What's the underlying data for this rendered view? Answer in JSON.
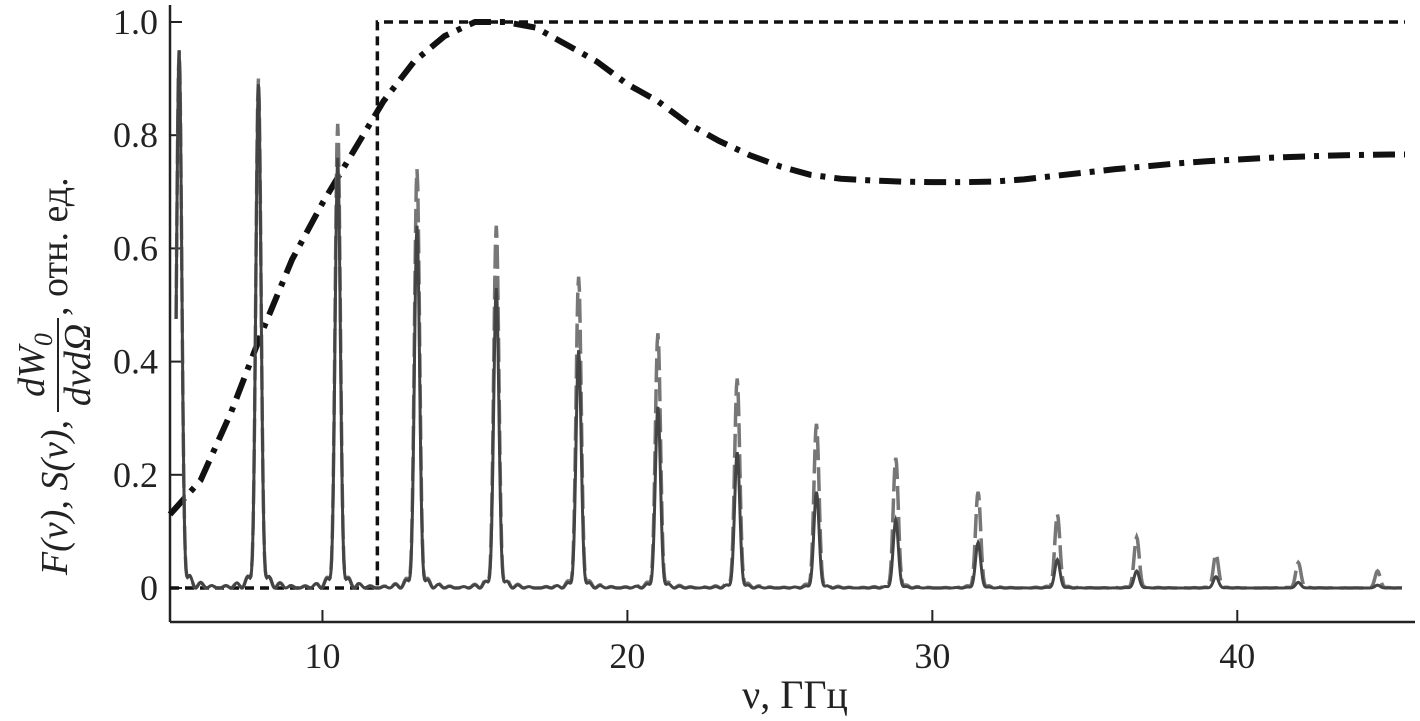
{
  "chart_data": {
    "type": "line",
    "xlabel": "ν, ГГц",
    "ylabel": {
      "prefix": "F(ν), S(ν),",
      "frac_num": "dW",
      "frac_num_sub": "0",
      "frac_den": "dνdΩ",
      "suffix": ", отн. ед."
    },
    "xlim": [
      5,
      45.5
    ],
    "ylim": [
      0,
      1.0
    ],
    "xticks": [
      10,
      20,
      30,
      40
    ],
    "xtick_labels": [
      "10",
      "20",
      "30",
      "40"
    ],
    "yticks": [
      0,
      0.2,
      0.4,
      0.6,
      0.8,
      1.0
    ],
    "ytick_labels": [
      "0",
      "0.2",
      "0.4",
      "0.6",
      "0.8",
      "1.0"
    ],
    "grid": false,
    "series": [
      {
        "style": "dashed-step",
        "color": "#111111",
        "x": [
          5.0,
          11.8,
          11.8,
          45.5
        ],
        "y": [
          0,
          0,
          1.0,
          1.0
        ]
      },
      {
        "style": "dash-dot",
        "color": "#111111",
        "x": [
          5.0,
          6.0,
          7.0,
          8.0,
          9.0,
          10.0,
          11.0,
          12.0,
          13.0,
          14.0,
          15.0,
          16.0,
          17.0,
          18.0,
          19.0,
          20.0,
          21.0,
          22.0,
          23.0,
          24.0,
          25.0,
          26.0,
          27.0,
          28.0,
          29.0,
          30.0,
          31.0,
          32.0,
          33.0,
          34.0,
          35.0,
          36.0,
          37.0,
          38.0,
          39.0,
          40.0,
          41.0,
          42.0,
          43.0,
          44.0,
          45.0,
          45.5
        ],
        "y": [
          0.13,
          0.19,
          0.31,
          0.45,
          0.58,
          0.68,
          0.77,
          0.86,
          0.93,
          0.975,
          1.0,
          1.0,
          0.99,
          0.96,
          0.93,
          0.89,
          0.86,
          0.82,
          0.79,
          0.765,
          0.745,
          0.73,
          0.723,
          0.72,
          0.718,
          0.717,
          0.717,
          0.718,
          0.722,
          0.728,
          0.734,
          0.74,
          0.745,
          0.75,
          0.754,
          0.757,
          0.76,
          0.762,
          0.764,
          0.765,
          0.766,
          0.766
        ]
      },
      {
        "style": "dashed-peaks",
        "color": "#777777",
        "peak_positions": [
          5.3,
          7.9,
          10.5,
          13.1,
          15.7,
          18.4,
          21.0,
          23.6,
          26.2,
          28.8,
          31.5,
          34.1,
          36.7,
          39.3,
          42.0,
          44.6
        ],
        "peak_heights": [
          0.95,
          0.9,
          0.82,
          0.74,
          0.64,
          0.55,
          0.45,
          0.37,
          0.29,
          0.23,
          0.17,
          0.13,
          0.09,
          0.06,
          0.045,
          0.03
        ]
      },
      {
        "style": "solid-peaks",
        "color": "#444444",
        "peak_positions": [
          5.3,
          7.9,
          10.5,
          13.1,
          15.7,
          18.4,
          21.0,
          23.6,
          26.2,
          28.8,
          31.5,
          34.1,
          36.7,
          39.3,
          42.0,
          44.6
        ],
        "peak_heights": [
          0.95,
          0.89,
          0.76,
          0.64,
          0.53,
          0.42,
          0.32,
          0.24,
          0.17,
          0.12,
          0.08,
          0.05,
          0.03,
          0.02,
          0.01,
          0.005
        ]
      }
    ]
  }
}
